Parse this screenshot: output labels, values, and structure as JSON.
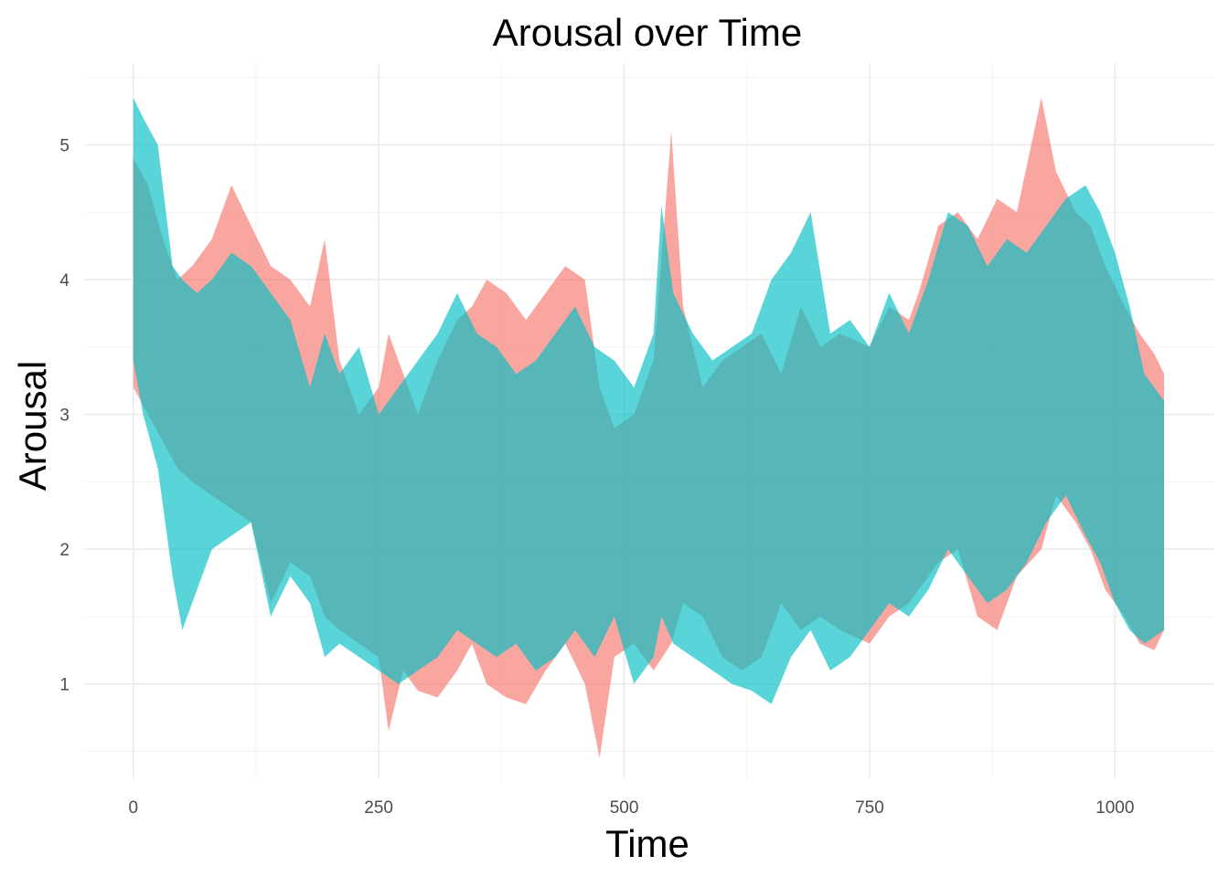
{
  "chart_data": {
    "type": "area",
    "title": "Arousal over Time",
    "xlabel": "Time",
    "ylabel": "Arousal",
    "xlim": [
      0,
      1050
    ],
    "ylim": [
      0.3,
      5.6
    ],
    "x_ticks": [
      0,
      250,
      500,
      750,
      1000
    ],
    "y_ticks": [
      1,
      2,
      3,
      4,
      5
    ],
    "x_tick_labels": [
      "0",
      "250",
      "500",
      "750",
      "1000"
    ],
    "y_tick_labels": [
      "1",
      "2",
      "3",
      "4",
      "5"
    ],
    "grid": true,
    "legend": "none",
    "series": [
      {
        "color": "#F8766D",
        "opacity": 0.65,
        "x": [
          0,
          15,
          30,
          45,
          60,
          80,
          100,
          120,
          140,
          160,
          180,
          195,
          210,
          230,
          250,
          260,
          275,
          290,
          310,
          330,
          345,
          360,
          380,
          400,
          420,
          440,
          460,
          475,
          490,
          510,
          530,
          548,
          560,
          580,
          600,
          620,
          640,
          660,
          680,
          700,
          720,
          750,
          770,
          790,
          800,
          820,
          840,
          860,
          880,
          900,
          925,
          940,
          960,
          975,
          990,
          1010,
          1025,
          1040,
          1050
        ],
        "upper": [
          4.9,
          4.7,
          4.3,
          4.0,
          4.1,
          4.3,
          4.7,
          4.4,
          4.1,
          4.0,
          3.8,
          4.3,
          3.4,
          3.0,
          3.2,
          3.6,
          3.3,
          3.0,
          3.4,
          3.7,
          3.8,
          4.0,
          3.9,
          3.7,
          3.9,
          4.1,
          4.0,
          3.2,
          2.9,
          3.0,
          3.4,
          5.1,
          3.8,
          3.2,
          3.4,
          3.5,
          3.6,
          3.3,
          3.8,
          3.5,
          3.6,
          3.5,
          3.8,
          3.7,
          3.9,
          4.4,
          4.5,
          4.3,
          4.6,
          4.5,
          5.35,
          4.8,
          4.5,
          4.4,
          4.1,
          3.8,
          3.6,
          3.45,
          3.3
        ],
        "lower": [
          3.2,
          3.0,
          2.8,
          2.6,
          2.5,
          2.4,
          2.3,
          2.2,
          1.6,
          1.9,
          1.8,
          1.5,
          1.4,
          1.3,
          1.2,
          0.65,
          1.1,
          0.95,
          0.9,
          1.1,
          1.3,
          1.0,
          0.9,
          0.85,
          1.1,
          1.3,
          1.0,
          0.45,
          1.2,
          1.3,
          1.1,
          1.3,
          1.6,
          1.5,
          1.2,
          1.1,
          1.2,
          1.6,
          1.4,
          1.5,
          1.4,
          1.3,
          1.5,
          1.6,
          1.7,
          1.9,
          2.0,
          1.5,
          1.4,
          1.8,
          2.0,
          2.4,
          2.2,
          2.0,
          1.7,
          1.5,
          1.3,
          1.25,
          1.4
        ]
      },
      {
        "color": "#00BFC4",
        "opacity": 0.65,
        "x": [
          0,
          10,
          25,
          40,
          50,
          65,
          80,
          100,
          120,
          140,
          160,
          180,
          195,
          210,
          230,
          250,
          270,
          290,
          310,
          330,
          350,
          370,
          390,
          410,
          430,
          450,
          470,
          490,
          510,
          530,
          538,
          550,
          570,
          590,
          610,
          630,
          650,
          670,
          690,
          710,
          730,
          750,
          770,
          790,
          810,
          830,
          850,
          870,
          890,
          910,
          930,
          950,
          970,
          985,
          1000,
          1015,
          1030,
          1050
        ],
        "upper": [
          5.35,
          5.2,
          5.0,
          4.1,
          4.0,
          3.9,
          4.0,
          4.2,
          4.1,
          3.9,
          3.7,
          3.2,
          3.6,
          3.3,
          3.5,
          3.0,
          3.2,
          3.4,
          3.6,
          3.9,
          3.6,
          3.5,
          3.3,
          3.4,
          3.6,
          3.8,
          3.5,
          3.4,
          3.2,
          3.6,
          4.55,
          3.9,
          3.6,
          3.4,
          3.5,
          3.6,
          4.0,
          4.2,
          4.5,
          3.6,
          3.7,
          3.5,
          3.9,
          3.6,
          4.0,
          4.5,
          4.4,
          4.1,
          4.3,
          4.2,
          4.4,
          4.6,
          4.7,
          4.5,
          4.2,
          3.8,
          3.3,
          3.1
        ],
        "lower": [
          3.4,
          3.0,
          2.6,
          1.8,
          1.4,
          1.7,
          2.0,
          2.1,
          2.2,
          1.5,
          1.8,
          1.6,
          1.2,
          1.3,
          1.2,
          1.1,
          1.0,
          1.1,
          1.2,
          1.4,
          1.3,
          1.2,
          1.3,
          1.1,
          1.2,
          1.4,
          1.2,
          1.5,
          1.0,
          1.2,
          1.5,
          1.3,
          1.2,
          1.1,
          1.0,
          0.95,
          0.85,
          1.2,
          1.4,
          1.1,
          1.2,
          1.4,
          1.6,
          1.5,
          1.7,
          2.0,
          1.8,
          1.6,
          1.7,
          1.9,
          2.2,
          2.4,
          2.1,
          1.9,
          1.6,
          1.4,
          1.3,
          1.4
        ]
      }
    ]
  }
}
